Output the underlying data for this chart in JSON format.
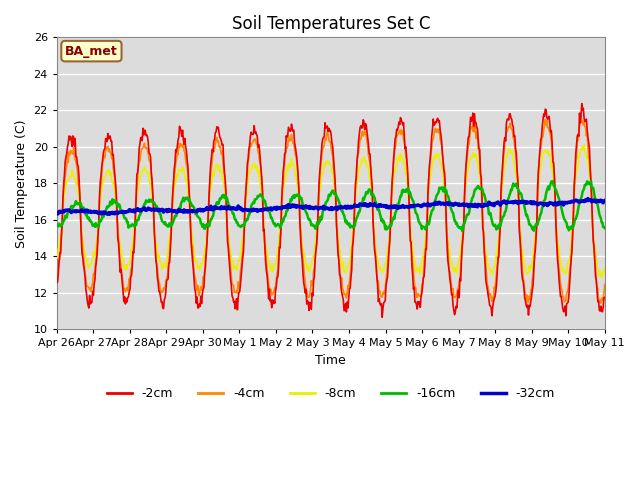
{
  "title": "Soil Temperatures Set C",
  "xlabel": "Time",
  "ylabel": "Soil Temperature (C)",
  "ylim": [
    10,
    26
  ],
  "yticks": [
    10,
    12,
    14,
    16,
    18,
    20,
    22,
    24,
    26
  ],
  "annotation": "BA_met",
  "bg_color": "#dcdcdc",
  "line_colors": {
    "-2cm": "#ee0000",
    "-4cm": "#ff8800",
    "-8cm": "#eeee00",
    "-16cm": "#00bb00",
    "-32cm": "#0000cc"
  },
  "line_widths": {
    "-2cm": 1.2,
    "-4cm": 1.2,
    "-8cm": 1.2,
    "-16cm": 1.8,
    "-32cm": 2.5
  },
  "x_tick_labels": [
    "Apr 26",
    "Apr 27",
    "Apr 28",
    "Apr 29",
    "Apr 30",
    "May 1",
    "May 2",
    "May 3",
    "May 4",
    "May 5",
    "May 6",
    "May 7",
    "May 8",
    "May 9",
    "May 10",
    "May 11"
  ],
  "num_points": 720
}
